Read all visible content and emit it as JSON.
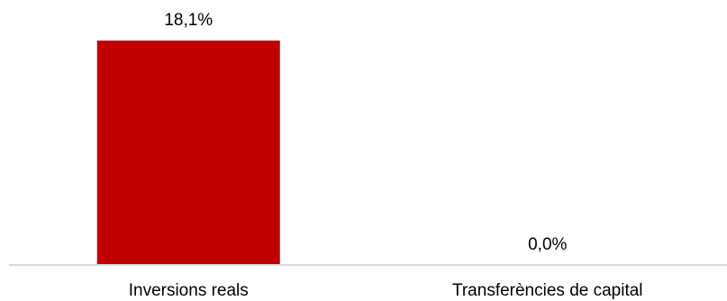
{
  "chart_data": {
    "type": "bar",
    "categories": [
      "Inversions reals",
      "Transferències de capital"
    ],
    "values": [
      18.1,
      0.0
    ],
    "data_labels": [
      "18,1%",
      "0,0%"
    ],
    "title": "",
    "xlabel": "",
    "ylabel": "",
    "ylim": [
      0,
      18.1
    ],
    "grid": false,
    "legend": "none",
    "bar_color": "#C00000",
    "axis_color": "#D9D9D9"
  }
}
